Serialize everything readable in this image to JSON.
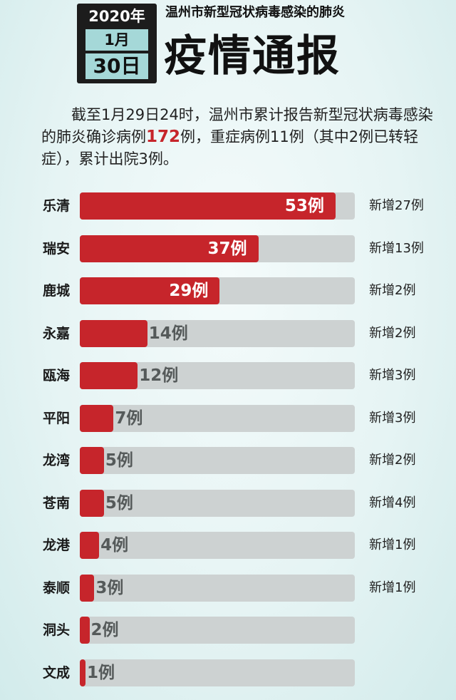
{
  "header": {
    "year": "2020年",
    "month": "1月",
    "day": "30日",
    "subtitle": "温州市新型冠状病毒感染的肺炎",
    "title": "疫情通报"
  },
  "summary": {
    "part1": "截至1月29日24时，温州市累计报告新型冠状病毒感染的肺炎确诊病例",
    "highlight": "172",
    "part2": "例，重症病例11例（其中2例已转轻症），累计出院3例。"
  },
  "colors": {
    "bar": "#c6252b",
    "track": "#cdd2d2",
    "highlight": "#c6252b"
  },
  "chart_data": {
    "type": "bar",
    "orientation": "horizontal",
    "categories": [
      "乐清",
      "瑞安",
      "鹿城",
      "永嘉",
      "瓯海",
      "平阳",
      "龙湾",
      "苍南",
      "龙港",
      "泰顺",
      "洞头",
      "文成"
    ],
    "values": [
      53,
      37,
      29,
      14,
      12,
      7,
      5,
      5,
      4,
      3,
      2,
      1
    ],
    "value_labels": [
      "53例",
      "37例",
      "29例",
      "14例",
      "12例",
      "7例",
      "5例",
      "5例",
      "4例",
      "3例",
      "2例",
      "1例"
    ],
    "new_labels": [
      "新增27例",
      "新增13例",
      "新增2例",
      "新增2例",
      "新增3例",
      "新增3例",
      "新增2例",
      "新增4例",
      "新增1例",
      "新增1例",
      "",
      ""
    ],
    "xlim": [
      0,
      57
    ]
  }
}
